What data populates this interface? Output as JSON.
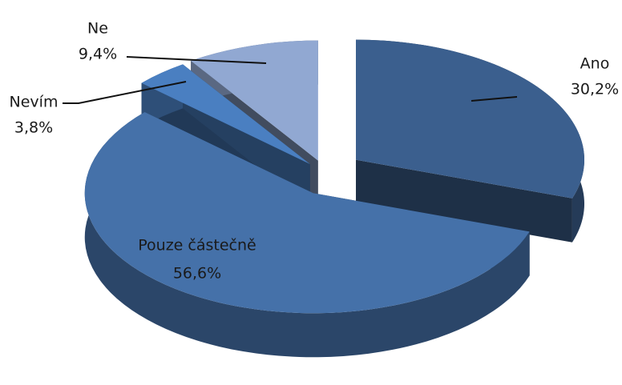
{
  "chart_data": {
    "type": "pie3d",
    "categories": [
      "Ano",
      "Pouze částečně",
      "Nevím",
      "Ne"
    ],
    "values": [
      30.2,
      56.6,
      3.8,
      9.4
    ],
    "value_labels": [
      "30,2%",
      "56,6%",
      "3,8%",
      "9,4%"
    ],
    "colors": [
      "#3b5f8e",
      "#4571a9",
      "#4a7fc1",
      "#91a8d2"
    ]
  }
}
